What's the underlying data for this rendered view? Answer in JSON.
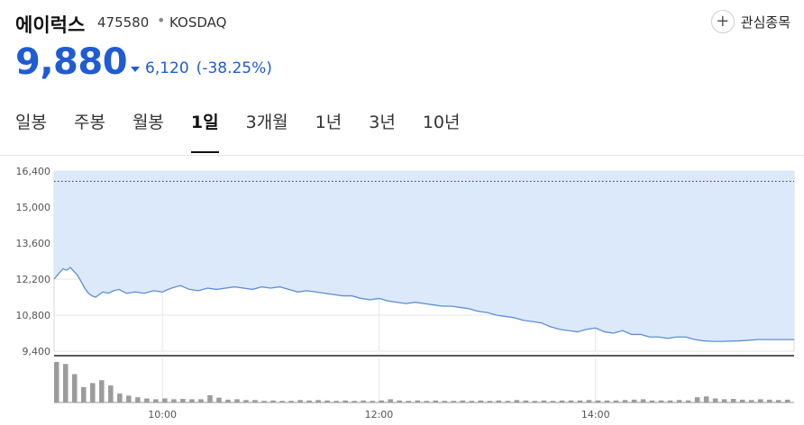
{
  "header": {
    "name": "에이럭스",
    "code": "475580",
    "separator": "•",
    "market": "KOSDAQ",
    "favorite_label": "관심종목",
    "favorite_icon": "plus-circle-icon"
  },
  "quote": {
    "price": "9,880",
    "direction_icon": "triangle-down-icon",
    "change": "6,120",
    "change_pct": "(-38.25%)",
    "color": "#1f5cd1"
  },
  "tabs": [
    {
      "label": "일봉",
      "active": false
    },
    {
      "label": "주봉",
      "active": false
    },
    {
      "label": "월봉",
      "active": false
    },
    {
      "label": "1일",
      "active": true
    },
    {
      "label": "3개월",
      "active": false
    },
    {
      "label": "1년",
      "active": false
    },
    {
      "label": "3년",
      "active": false
    },
    {
      "label": "10년",
      "active": false
    }
  ],
  "chart_data": {
    "type": "area",
    "title": "",
    "ylim": [
      9400,
      16400
    ],
    "y_ticks": [
      9400,
      10800,
      12200,
      13600,
      15000,
      16400
    ],
    "y_tick_labels": [
      "9,400",
      "10,800",
      "12,200",
      "13,600",
      "15,000",
      "16,400"
    ],
    "x_tick_labels": [
      "10:00",
      "12:00",
      "14:00"
    ],
    "x_ticks_min": [
      60,
      180,
      300
    ],
    "x_range_min": [
      0,
      410
    ],
    "reference_line": 16000,
    "grid": true,
    "line_color": "#5b8fd6",
    "fill_color": "#dce9fb",
    "volume_color": "#9c9c9c",
    "price_series": {
      "time_min": [
        0,
        3,
        5,
        7,
        9,
        11,
        13,
        15,
        17,
        19,
        21,
        23,
        25,
        27,
        30,
        33,
        36,
        40,
        45,
        50,
        55,
        60,
        65,
        70,
        75,
        80,
        85,
        90,
        95,
        100,
        105,
        110,
        115,
        120,
        125,
        130,
        135,
        140,
        145,
        150,
        155,
        160,
        165,
        170,
        175,
        180,
        185,
        190,
        195,
        200,
        205,
        210,
        215,
        220,
        225,
        230,
        235,
        240,
        245,
        250,
        255,
        260,
        265,
        270,
        275,
        280,
        285,
        290,
        295,
        300,
        305,
        310,
        315,
        320,
        325,
        330,
        335,
        340,
        345,
        350,
        355,
        360,
        365,
        370,
        380,
        390,
        400,
        410
      ],
      "values": [
        12200,
        12450,
        12600,
        12550,
        12650,
        12500,
        12350,
        12100,
        11850,
        11650,
        11550,
        11500,
        11600,
        11700,
        11650,
        11750,
        11800,
        11650,
        11700,
        11650,
        11750,
        11700,
        11850,
        11950,
        11800,
        11750,
        11850,
        11800,
        11850,
        11900,
        11850,
        11800,
        11900,
        11850,
        11900,
        11800,
        11700,
        11750,
        11700,
        11650,
        11600,
        11550,
        11550,
        11450,
        11400,
        11450,
        11350,
        11300,
        11250,
        11300,
        11250,
        11200,
        11150,
        11150,
        11100,
        11050,
        10950,
        10900,
        10800,
        10750,
        10700,
        10600,
        10550,
        10500,
        10350,
        10250,
        10200,
        10150,
        10250,
        10300,
        10150,
        10100,
        10200,
        10050,
        10050,
        9950,
        9950,
        9900,
        9950,
        9950,
        9850,
        9800,
        9780,
        9780,
        9800,
        9850,
        9850,
        9850
      ]
    },
    "volume_series": {
      "time_min": [
        0,
        5,
        10,
        15,
        20,
        25,
        30,
        35,
        40,
        45,
        50,
        55,
        60,
        65,
        70,
        75,
        80,
        85,
        90,
        95,
        100,
        105,
        110,
        115,
        120,
        125,
        130,
        135,
        140,
        145,
        150,
        155,
        160,
        165,
        170,
        175,
        180,
        185,
        190,
        195,
        200,
        205,
        210,
        215,
        220,
        225,
        230,
        235,
        240,
        245,
        250,
        255,
        260,
        265,
        270,
        275,
        280,
        285,
        290,
        295,
        300,
        305,
        310,
        315,
        320,
        325,
        330,
        335,
        340,
        345,
        350,
        355,
        360,
        365,
        370,
        375,
        380,
        385,
        390,
        395,
        400,
        405
      ],
      "values": [
        100,
        95,
        70,
        38,
        48,
        55,
        42,
        22,
        17,
        13,
        10,
        8,
        10,
        8,
        9,
        8,
        8,
        18,
        12,
        7,
        8,
        6,
        6,
        4,
        5,
        4,
        4,
        6,
        5,
        6,
        5,
        4,
        5,
        4,
        5,
        4,
        5,
        8,
        5,
        4,
        5,
        4,
        5,
        4,
        4,
        5,
        4,
        5,
        4,
        5,
        4,
        6,
        5,
        4,
        5,
        4,
        5,
        5,
        5,
        6,
        5,
        5,
        5,
        6,
        7,
        8,
        5,
        5,
        5,
        6,
        5,
        13,
        15,
        10,
        8,
        9,
        7,
        6,
        8,
        7,
        6,
        7
      ]
    }
  }
}
